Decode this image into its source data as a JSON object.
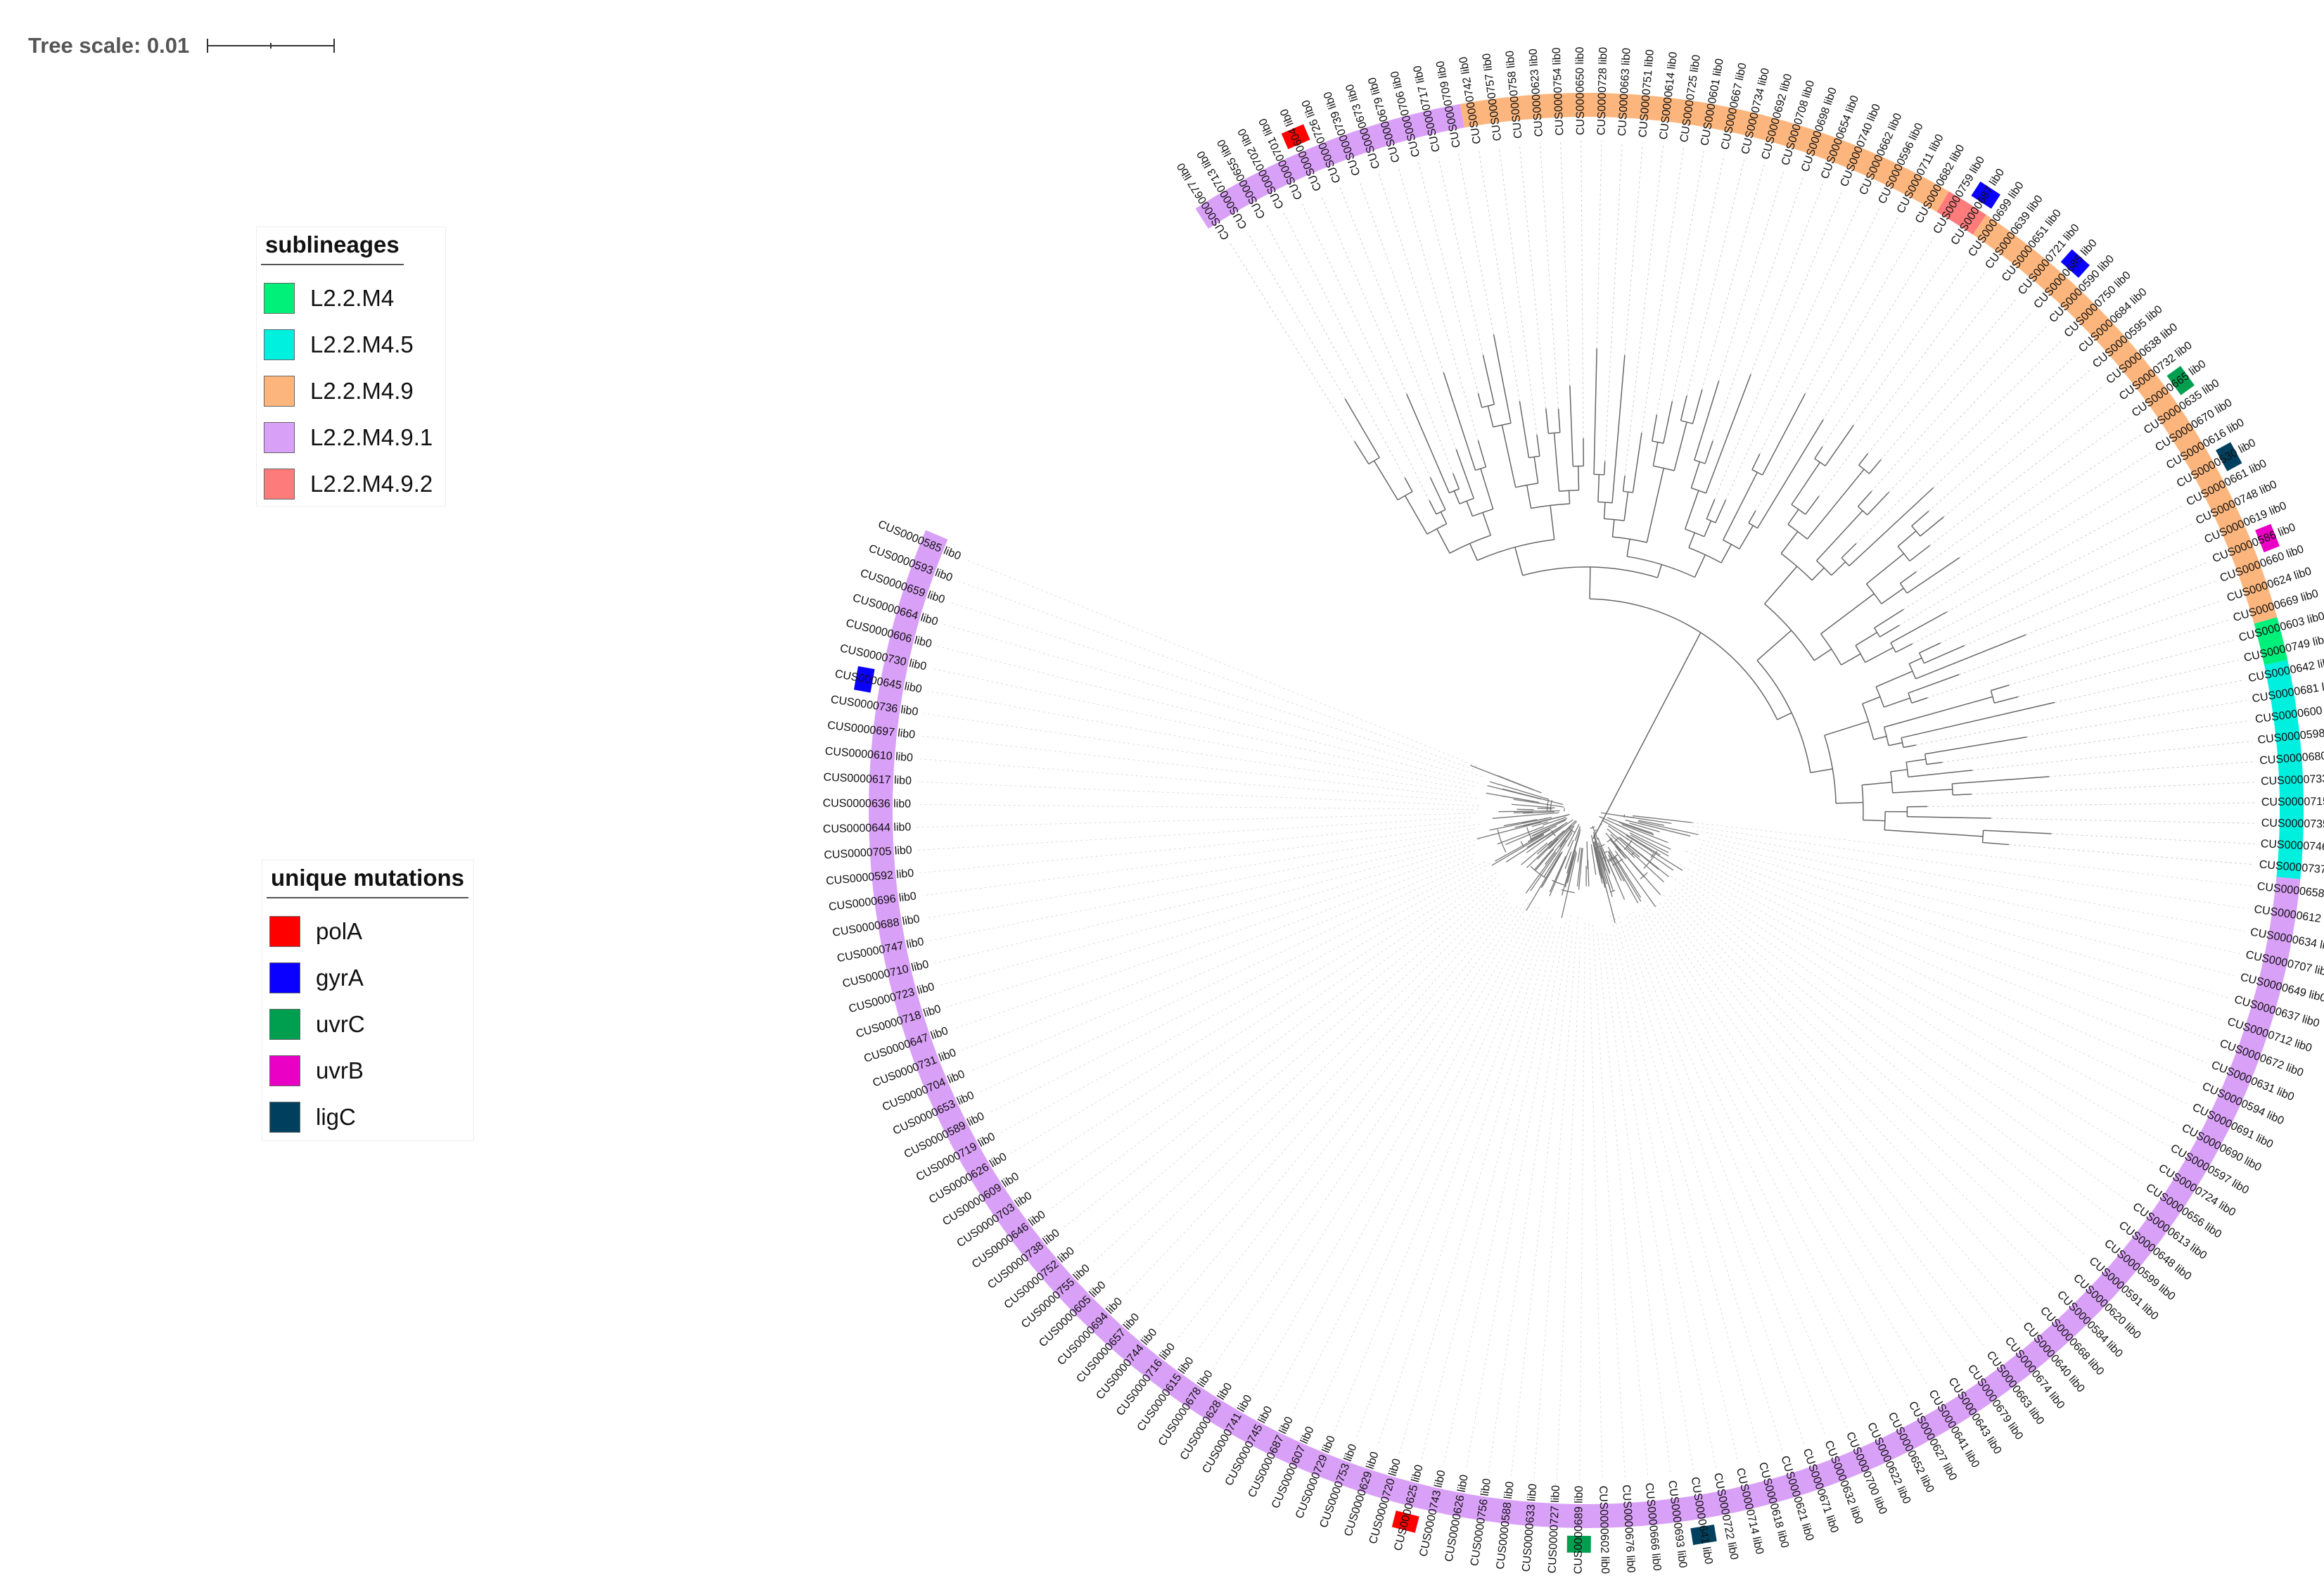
{
  "tree_scale": {
    "label": "Tree scale: 0.01"
  },
  "legend_sublineages": {
    "title": "sublineages",
    "items": [
      {
        "label": "L2.2.M4",
        "color": "#00f07a"
      },
      {
        "label": "L2.2.M4.5",
        "color": "#00f0e0"
      },
      {
        "label": "L2.2.M4.9",
        "color": "#fcb67d"
      },
      {
        "label": "L2.2.M4.9.1",
        "color": "#d9a0f7"
      },
      {
        "label": "L2.2.M4.9.2",
        "color": "#fd7b7b"
      }
    ]
  },
  "legend_mutations": {
    "title": "unique mutations",
    "items": [
      {
        "label": "polA",
        "color": "#ff0000"
      },
      {
        "label": "gyrA",
        "color": "#0a00ff"
      },
      {
        "label": "uvrC",
        "color": "#009f4f"
      },
      {
        "label": "uvrB",
        "color": "#ea00c4"
      },
      {
        "label": "ligC",
        "color": "#00405f"
      }
    ]
  },
  "tree": {
    "upper_leaves": [
      "CUS0000677 lib0",
      "CUS0000713 lib0",
      "CUS0000655 lib0",
      "CUS0000702 lib0",
      "CUS0000701 lib0",
      "CUS0000604 lib0",
      "CUS0000726 lib0",
      "CUS0000739 lib0",
      "CUS0000673 lib0",
      "CUS0000679 lib0",
      "CUS0000706 lib0",
      "CUS0000717 lib0",
      "CUS0000709 lib0",
      "CUS0000742 lib0",
      "CUS0000757 lib0",
      "CUS0000758 lib0",
      "CUS0000623 lib0",
      "CUS0000754 lib0",
      "CUS0000650 lib0",
      "CUS0000728 lib0",
      "CUS0000663 lib0",
      "CUS0000751 lib0",
      "CUS0000614 lib0",
      "CUS0000725 lib0",
      "CUS0000601 lib0",
      "CUS0000667 lib0",
      "CUS0000734 lib0",
      "CUS0000692 lib0",
      "CUS0000708 lib0",
      "CUS0000698 lib0",
      "CUS0000654 lib0",
      "CUS0000740 lib0",
      "CUS0000662 lib0",
      "CUS0000596 lib0",
      "CUS0000711 lib0",
      "CUS0000682 lib0",
      "CUS0000759 lib0",
      "CUS0000687 lib0",
      "CUS0000699 lib0",
      "CUS0000639 lib0",
      "CUS0000651 lib0",
      "CUS0000721 lib0",
      "CUS0000685 lib0",
      "CUS0000590 lib0",
      "CUS0000750 lib0",
      "CUS0000684 lib0",
      "CUS0000595 lib0",
      "CUS0000638 lib0",
      "CUS0000732 lib0",
      "CUS0000665 lib0",
      "CUS0000635 lib0",
      "CUS0000670 lib0",
      "CUS0000616 lib0",
      "CUS0000530 lib0",
      "CUS0000661 lib0",
      "CUS0000748 lib0",
      "CUS0000619 lib0",
      "CUS0000586 lib0",
      "CUS0000660 lib0",
      "CUS0000624 lib0",
      "CUS0000669 lib0",
      "CUS0000603 lib0",
      "CUS0000749 lib0",
      "CUS0000642 lib0",
      "CUS0000681 lib0",
      "CUS0000600 lib0",
      "CUS0000598 lib0",
      "CUS0000680 lib0",
      "CUS0000733 lib0",
      "CUS0000715 lib0",
      "CUS0000735 lib0",
      "CUS0000746 lib0",
      "CUS0000737 lib0"
    ],
    "lower_leaves": [
      "CUS0000658 lib0",
      "CUS0000612 lib0",
      "CUS0000634 lib0",
      "CUS0000707 lib0",
      "CUS0000649 lib0",
      "CUS0000637 lib0",
      "CUS0000712 lib0",
      "CUS0000672 lib0",
      "CUS0000631 lib0",
      "CUS0000594 lib0",
      "CUS0000691 lib0",
      "CUS0000690 lib0",
      "CUS0000597 lib0",
      "CUS0000724 lib0",
      "CUS0000656 lib0",
      "CUS0000613 lib0",
      "CUS0000648 lib0",
      "CUS0000599 lib0",
      "CUS0000591 lib0",
      "CUS0000620 lib0",
      "CUS0000584 lib0",
      "CUS0000668 lib0",
      "CUS0000640 lib0",
      "CUS0000674 lib0",
      "CUS0000663 lib0",
      "CUS0000679 lib0",
      "CUS0000643 lib0",
      "CUS0000641 lib0",
      "CUS0000627 lib0",
      "CUS0000652 lib0",
      "CUS0000622 lib0",
      "CUS0000700 lib0",
      "CUS0000632 lib0",
      "CUS0000671 lib0",
      "CUS0000621 lib0",
      "CUS0000618 lib0",
      "CUS0000714 lib0",
      "CUS0000722 lib0",
      "CUS0000641 lib0",
      "CUS0000693 lib0",
      "CUS0000666 lib0",
      "CUS0000676 lib0",
      "CUS0000602 lib0",
      "CUS0000689 lib0",
      "CUS0000727 lib0",
      "CUS0000633 lib0",
      "CUS0000588 lib0",
      "CUS0000756 lib0",
      "CUS0000626 lib0",
      "CUS0000743 lib0",
      "CUS0000625 lib0",
      "CUS0000720 lib0",
      "CUS0000629 lib0",
      "CUS0000753 lib0",
      "CUS0000729 lib0",
      "CUS0000607 lib0",
      "CUS0000687 lib0",
      "CUS0000745 lib0",
      "CUS0000741 lib0",
      "CUS0000628 lib0",
      "CUS0000678 lib0",
      "CUS0000615 lib0",
      "CUS0000716 lib0",
      "CUS0000744 lib0",
      "CUS0000657 lib0",
      "CUS0000694 lib0",
      "CUS0000605 lib0",
      "CUS0000755 lib0",
      "CUS0000752 lib0",
      "CUS0000738 lib0",
      "CUS0000646 lib0",
      "CUS0000703 lib0",
      "CUS0000609 lib0",
      "CUS0000626 lib0",
      "CUS0000719 lib0",
      "CUS0000589 lib0",
      "CUS0000653 lib0",
      "CUS0000704 lib0",
      "CUS0000731 lib0",
      "CUS0000647 lib0",
      "CUS0000718 lib0",
      "CUS0000723 lib0",
      "CUS0000710 lib0",
      "CUS0000747 lib0",
      "CUS0000688 lib0",
      "CUS0000696 lib0",
      "CUS0000592 lib0",
      "CUS0000705 lib0",
      "CUS0000644 lib0",
      "CUS0000636 lib0",
      "CUS0000617 lib0",
      "CUS0000610 lib0",
      "CUS0000697 lib0",
      "CUS0000736 lib0",
      "CUS0000645 lib0",
      "CUS0000730 lib0",
      "CUS0000606 lib0",
      "CUS0000664 lib0",
      "CUS0000659 lib0",
      "CUS0000593 lib0",
      "CUS0000585 lib0"
    ],
    "upper_ring": [
      {
        "sublineage": "L2.2.M4.9.1",
        "from": 0,
        "to": 12
      },
      {
        "sublineage": "L2.2.M4.9",
        "from": 13,
        "to": 35
      },
      {
        "sublineage": "L2.2.M4.9.2",
        "from": 36,
        "to": 37
      },
      {
        "sublineage": "L2.2.M4.9",
        "from": 38,
        "to": 60
      },
      {
        "sublineage": "L2.2.M4",
        "from": 61,
        "to": 62
      },
      {
        "sublineage": "L2.2.M4.5",
        "from": 63,
        "to": 72
      }
    ],
    "upper_marks": [
      {
        "mutation": "polA",
        "leaf": 5
      },
      {
        "mutation": "gyrA",
        "leaf": 37
      },
      {
        "mutation": "gyrA",
        "leaf": 42
      },
      {
        "mutation": "uvrC",
        "leaf": 49
      },
      {
        "mutation": "ligC",
        "leaf": 53
      },
      {
        "mutation": "uvrB",
        "leaf": 57
      }
    ],
    "lower_marks": [
      {
        "mutation": "ligC",
        "leaf": 38
      },
      {
        "mutation": "uvrC",
        "leaf": 43
      },
      {
        "mutation": "polA",
        "leaf": 50
      },
      {
        "mutation": "gyrA",
        "leaf": 94
      }
    ]
  }
}
